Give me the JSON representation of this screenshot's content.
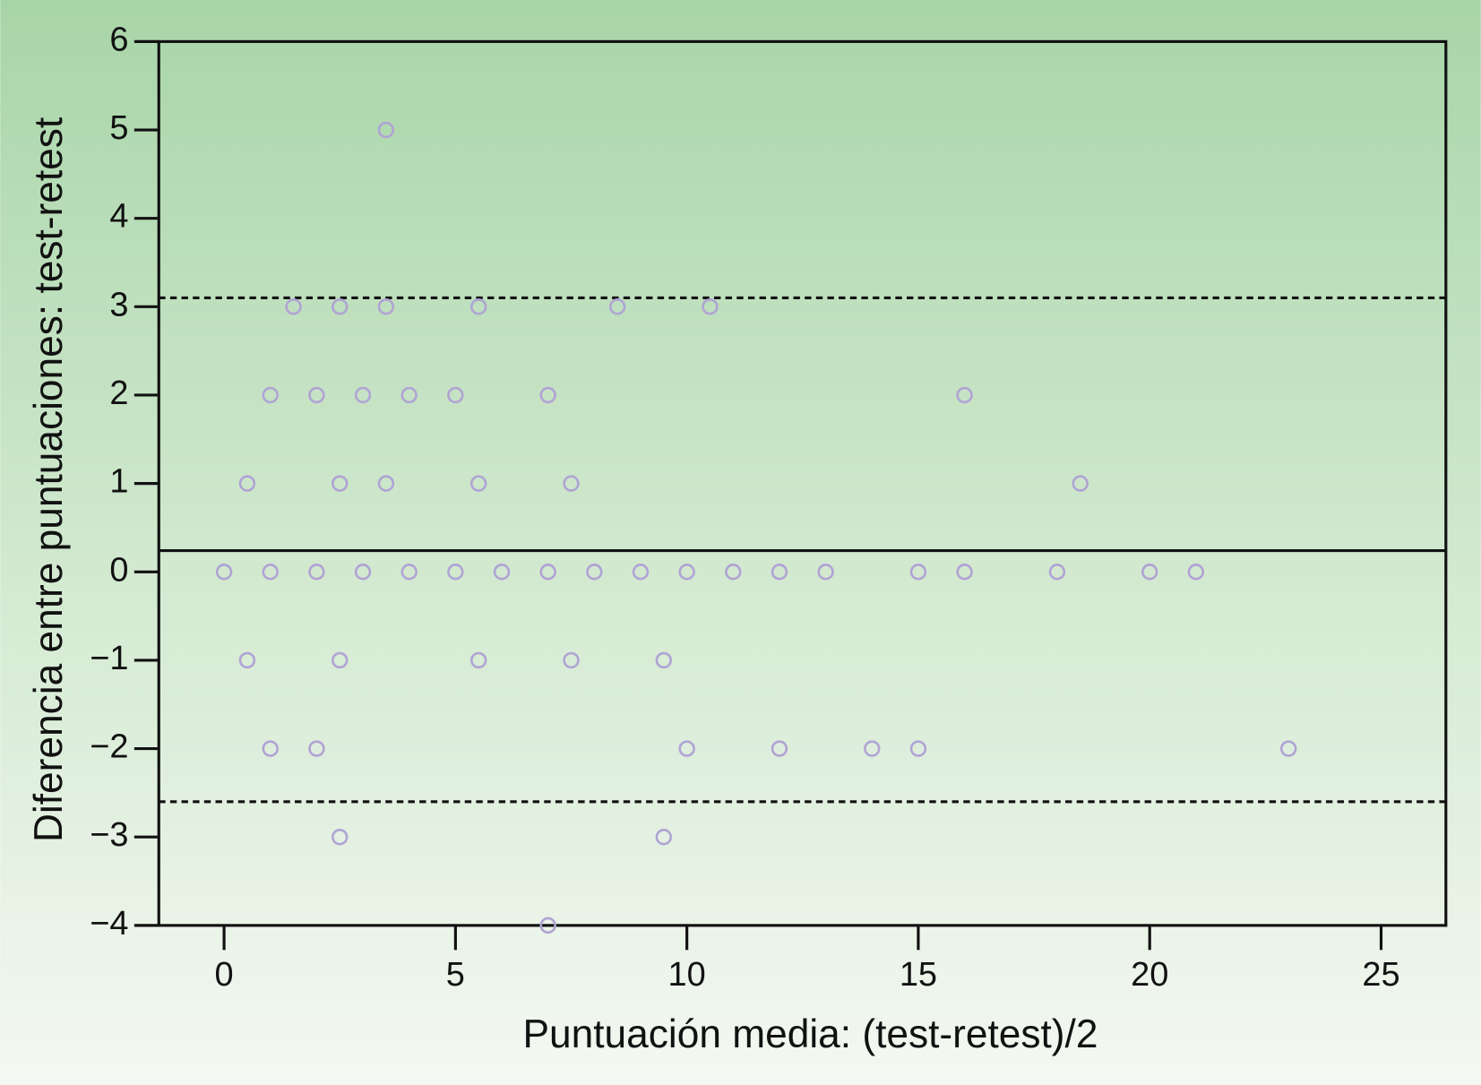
{
  "chart_data": {
    "type": "scatter",
    "x_label": "Puntuación media: (test-retest)/2",
    "y_label": "Diferencia entre puntuaciones: test-retest",
    "xlim": [
      -1.41,
      26.4
    ],
    "ylim": [
      -4,
      6
    ],
    "xticks": [
      0,
      5,
      10,
      15,
      20,
      25
    ],
    "yticks": [
      {
        "value": -4,
        "label": "−4"
      },
      {
        "value": -3,
        "label": "−3"
      },
      {
        "value": -2,
        "label": "−2"
      },
      {
        "value": -1,
        "label": "−1"
      },
      0,
      1,
      2,
      3,
      4,
      5,
      6
    ],
    "reference_lines": [
      {
        "value": 0.24,
        "style": "solid"
      },
      {
        "value": 3.1,
        "style": "dashed"
      },
      {
        "value": -2.6,
        "style": "dashed"
      }
    ],
    "series": [
      {
        "color": "#b0a4d4",
        "x": [
          3.5,
          1.5,
          2.5,
          3.5,
          5.5,
          8.5,
          10.5,
          1,
          2,
          3,
          4,
          5,
          7,
          16,
          0.5,
          2.5,
          3.5,
          5.5,
          7.5,
          18.5,
          0,
          1,
          2,
          3,
          4,
          5,
          6,
          7,
          8,
          9,
          10,
          11,
          12,
          13,
          15,
          16,
          18,
          20,
          21,
          0.5,
          2.5,
          5.5,
          7.5,
          9.5,
          1,
          2,
          10,
          12,
          14,
          15,
          23,
          2.5,
          9.5,
          7
        ],
        "values": [
          5,
          3,
          3,
          3,
          3,
          3,
          3,
          2,
          2,
          2,
          2,
          2,
          2,
          2,
          1,
          1,
          1,
          1,
          1,
          1,
          0,
          0,
          0,
          0,
          0,
          0,
          0,
          0,
          0,
          0,
          0,
          0,
          0,
          0,
          0,
          0,
          0,
          0,
          0,
          -1,
          -1,
          -1,
          -1,
          -1,
          -2,
          -2,
          -2,
          -2,
          -2,
          -2,
          -2,
          -3,
          -3,
          -4
        ]
      }
    ]
  }
}
